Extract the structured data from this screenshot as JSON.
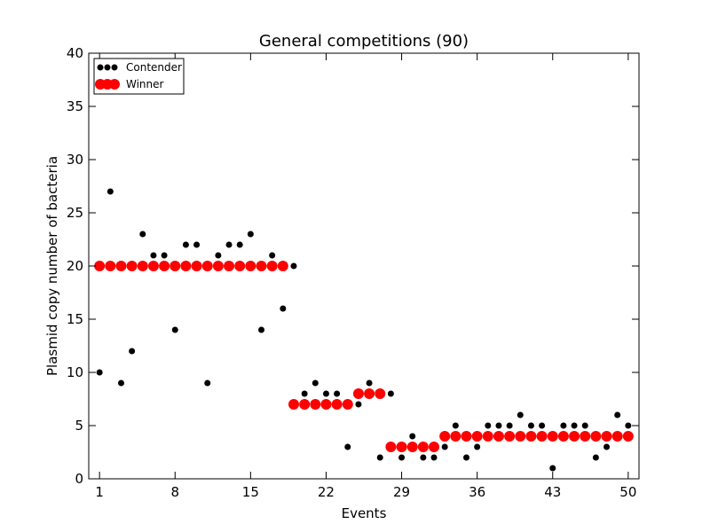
{
  "chart_data": {
    "type": "scatter",
    "title": "General competitions (90)",
    "xlabel": "Events",
    "ylabel": "Plasmid copy number of bacteria",
    "xlim": [
      0,
      51
    ],
    "ylim": [
      0,
      40
    ],
    "xticks": [
      1,
      8,
      15,
      22,
      29,
      36,
      43,
      50
    ],
    "yticks": [
      0,
      5,
      10,
      15,
      20,
      25,
      30,
      35,
      40
    ],
    "grid": false,
    "legend_position": "top-left",
    "series": [
      {
        "name": "Contender",
        "color": "#000000",
        "marker": "small-circle",
        "points": [
          [
            1,
            10
          ],
          [
            2,
            27
          ],
          [
            3,
            9
          ],
          [
            4,
            12
          ],
          [
            5,
            23
          ],
          [
            6,
            21
          ],
          [
            7,
            21
          ],
          [
            8,
            14
          ],
          [
            9,
            22
          ],
          [
            10,
            22
          ],
          [
            11,
            9
          ],
          [
            12,
            21
          ],
          [
            13,
            22
          ],
          [
            14,
            22
          ],
          [
            15,
            23
          ],
          [
            16,
            14
          ],
          [
            17,
            21
          ],
          [
            18,
            16
          ],
          [
            19,
            20
          ],
          [
            20,
            8
          ],
          [
            21,
            9
          ],
          [
            22,
            8
          ],
          [
            23,
            8
          ],
          [
            24,
            3
          ],
          [
            25,
            7
          ],
          [
            26,
            9
          ],
          [
            27,
            2
          ],
          [
            28,
            8
          ],
          [
            29,
            2
          ],
          [
            30,
            4
          ],
          [
            31,
            2
          ],
          [
            32,
            2
          ],
          [
            33,
            3
          ],
          [
            34,
            5
          ],
          [
            35,
            2
          ],
          [
            36,
            3
          ],
          [
            37,
            5
          ],
          [
            38,
            5
          ],
          [
            39,
            5
          ],
          [
            40,
            6
          ],
          [
            41,
            5
          ],
          [
            42,
            5
          ],
          [
            43,
            1
          ],
          [
            44,
            5
          ],
          [
            45,
            5
          ],
          [
            46,
            5
          ],
          [
            47,
            2
          ],
          [
            48,
            3
          ],
          [
            49,
            6
          ],
          [
            50,
            5
          ]
        ]
      },
      {
        "name": "Winner",
        "color": "#ff0000",
        "marker": "large-circle",
        "points": [
          [
            1,
            20
          ],
          [
            2,
            20
          ],
          [
            3,
            20
          ],
          [
            4,
            20
          ],
          [
            5,
            20
          ],
          [
            6,
            20
          ],
          [
            7,
            20
          ],
          [
            8,
            20
          ],
          [
            9,
            20
          ],
          [
            10,
            20
          ],
          [
            11,
            20
          ],
          [
            12,
            20
          ],
          [
            13,
            20
          ],
          [
            14,
            20
          ],
          [
            15,
            20
          ],
          [
            16,
            20
          ],
          [
            17,
            20
          ],
          [
            18,
            20
          ],
          [
            19,
            7
          ],
          [
            20,
            7
          ],
          [
            21,
            7
          ],
          [
            22,
            7
          ],
          [
            23,
            7
          ],
          [
            24,
            7
          ],
          [
            25,
            8
          ],
          [
            26,
            8
          ],
          [
            27,
            8
          ],
          [
            28,
            3
          ],
          [
            29,
            3
          ],
          [
            30,
            3
          ],
          [
            31,
            3
          ],
          [
            32,
            3
          ],
          [
            33,
            4
          ],
          [
            34,
            4
          ],
          [
            35,
            4
          ],
          [
            36,
            4
          ],
          [
            37,
            4
          ],
          [
            38,
            4
          ],
          [
            39,
            4
          ],
          [
            40,
            4
          ],
          [
            41,
            4
          ],
          [
            42,
            4
          ],
          [
            43,
            4
          ],
          [
            44,
            4
          ],
          [
            45,
            4
          ],
          [
            46,
            4
          ],
          [
            47,
            4
          ],
          [
            48,
            4
          ],
          [
            49,
            4
          ],
          [
            50,
            4
          ]
        ]
      }
    ]
  }
}
